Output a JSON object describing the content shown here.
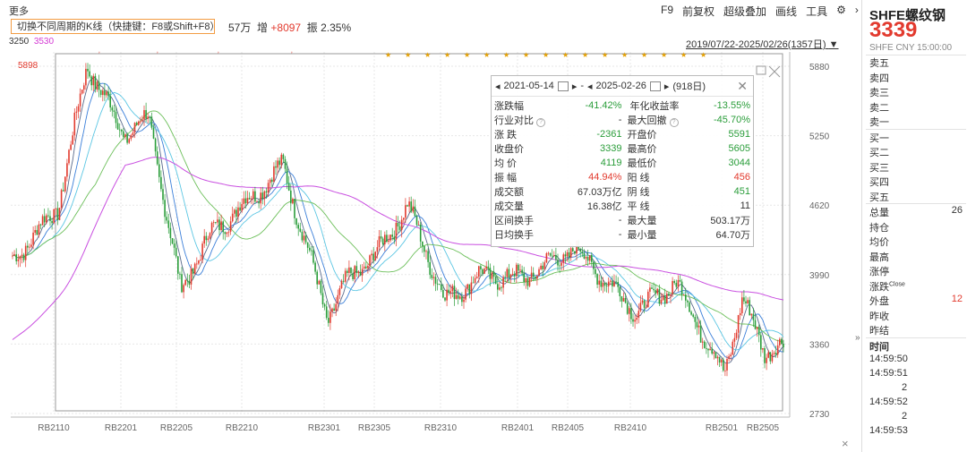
{
  "toolbar": {
    "more": "更多",
    "items": [
      "F9",
      "前复权",
      "超级叠加",
      "画线",
      "工具"
    ],
    "gear_icon": "gear-icon",
    "arrow_icon": "chevron-right-icon"
  },
  "tooltip": "切换不同周期的K线（快捷键：F8或Shift+F8）",
  "info_line": {
    "vol_tail": "57万",
    "inc_label": "增",
    "inc_value": "+8097",
    "amp_label": "振",
    "amp_value": "2.35%"
  },
  "top_prices": {
    "left": "3250",
    "ma": "3530"
  },
  "date_range": "2019/07/22-2025/02/26(1357日)",
  "high_label": "5898",
  "y_axis": [
    "5880",
    "5250",
    "4620",
    "3990",
    "3360",
    "2730"
  ],
  "x_axis": [
    "RB2110",
    "RB2201",
    "RB2205",
    "RB2210",
    "RB2301",
    "RB2305",
    "RB2310",
    "RB2401",
    "RB2405",
    "RB2410",
    "RB2501",
    "RB2505"
  ],
  "colors": {
    "up": "#e23a2e",
    "down": "#2a9d3a",
    "ma_white": "#5a6b8c",
    "ma_blue": "#3b7fd9",
    "ma_cyan": "#5bc6e3",
    "ma_green": "#6cbf5a",
    "ma_magenta": "#c94fe0",
    "grid": "#e7e7e7"
  },
  "stats": {
    "start_date": "2021-05-14",
    "end_date": "2025-02-26",
    "days": "(918日)",
    "rows": [
      {
        "l1": "涨跌幅",
        "v1": "-41.42%",
        "c1": "g",
        "l2": "年化收益率",
        "v2": "-13.55%",
        "c2": "g"
      },
      {
        "l1": "行业对比",
        "v1": "-",
        "c1": "",
        "l2": "最大回撤",
        "v2": "-45.70%",
        "c2": "g"
      },
      {
        "l1": "涨  跌",
        "v1": "-2361",
        "c1": "g",
        "l2": "开盘价",
        "v2": "5591",
        "c2": "g"
      },
      {
        "l1": "收盘价",
        "v1": "3339",
        "c1": "g",
        "l2": "最高价",
        "v2": "5605",
        "c2": "g"
      },
      {
        "l1": "均  价",
        "v1": "4119",
        "c1": "g",
        "l2": "最低价",
        "v2": "3044",
        "c2": "g"
      },
      {
        "l1": "振  幅",
        "v1": "44.94%",
        "c1": "r",
        "l2": "阳  线",
        "v2": "456",
        "c2": "r"
      },
      {
        "l1": "成交额",
        "v1": "67.03万亿",
        "c1": "",
        "l2": "阴  线",
        "v2": "451",
        "c2": "g"
      },
      {
        "l1": "成交量",
        "v1": "16.38亿",
        "c1": "",
        "l2": "平  线",
        "v2": "11",
        "c2": ""
      },
      {
        "l1": "区间换手",
        "v1": "-",
        "c1": "",
        "l2": "最大量",
        "v2": "503.17万",
        "c2": ""
      },
      {
        "l1": "日均换手",
        "v1": "-",
        "c1": "",
        "l2": "最小量",
        "v2": "64.70万",
        "c2": ""
      }
    ]
  },
  "right_panel": {
    "name": "SHFE螺纹钢",
    "price": "3339",
    "meta": "SHFE  CNY  15:00:00",
    "sells": [
      "卖五",
      "卖四",
      "卖三",
      "卖二",
      "卖一"
    ],
    "buys": [
      "买一",
      "买二",
      "买三",
      "买四",
      "买五"
    ],
    "stats": [
      {
        "label": "总量",
        "value": "26"
      },
      {
        "label": "持仓",
        "value": ""
      },
      {
        "label": "均价",
        "value": ""
      },
      {
        "label": "最高",
        "value": ""
      },
      {
        "label": "涨停",
        "value": ""
      },
      {
        "label": "涨跌",
        "sup": "Close",
        "value": ""
      },
      {
        "label": "外盘",
        "value": "12"
      },
      {
        "label": "昨收",
        "value": ""
      },
      {
        "label": "昨结",
        "value": ""
      }
    ],
    "ticks_header": "时间",
    "ticks": [
      {
        "time": "14:59:50",
        "vol": ""
      },
      {
        "time": "14:59:51",
        "vol": "2"
      },
      {
        "time": "14:59:52",
        "vol": "2"
      },
      {
        "time": "14:59:53",
        "vol": ""
      }
    ]
  },
  "collapse_label": "»",
  "close_x": "×",
  "chart_data": {
    "type": "candlestick",
    "y_range": [
      2730,
      5880
    ],
    "x_labels": [
      "RB2110",
      "RB2201",
      "RB2205",
      "RB2210",
      "RB2301",
      "RB2305",
      "RB2310",
      "RB2401",
      "RB2405",
      "RB2410",
      "RB2501",
      "RB2505"
    ],
    "price_path": [
      [
        "RB2110",
        4600
      ],
      [
        "RB2110",
        5898
      ],
      [
        "RB2201",
        5250
      ],
      [
        "RB2201",
        5420
      ],
      [
        "RB2205",
        3840
      ],
      [
        "RB2205",
        4350
      ],
      [
        "RB2210",
        4650
      ],
      [
        "RB2210",
        4980
      ],
      [
        "RB2301",
        3600
      ],
      [
        "RB2301",
        3960
      ],
      [
        "RB2305",
        4200
      ],
      [
        "RB2305",
        4620
      ],
      [
        "RB2310",
        3750
      ],
      [
        "RB2310",
        3980
      ],
      [
        "RB2401",
        3960
      ],
      [
        "RB2405",
        4230
      ],
      [
        "RB2410",
        3650
      ],
      [
        "RB2410",
        3920
      ],
      [
        "RB2501",
        3080
      ],
      [
        "RB2501",
        3780
      ],
      [
        "RB2505",
        3290
      ],
      [
        "RB2505",
        3339
      ]
    ]
  }
}
